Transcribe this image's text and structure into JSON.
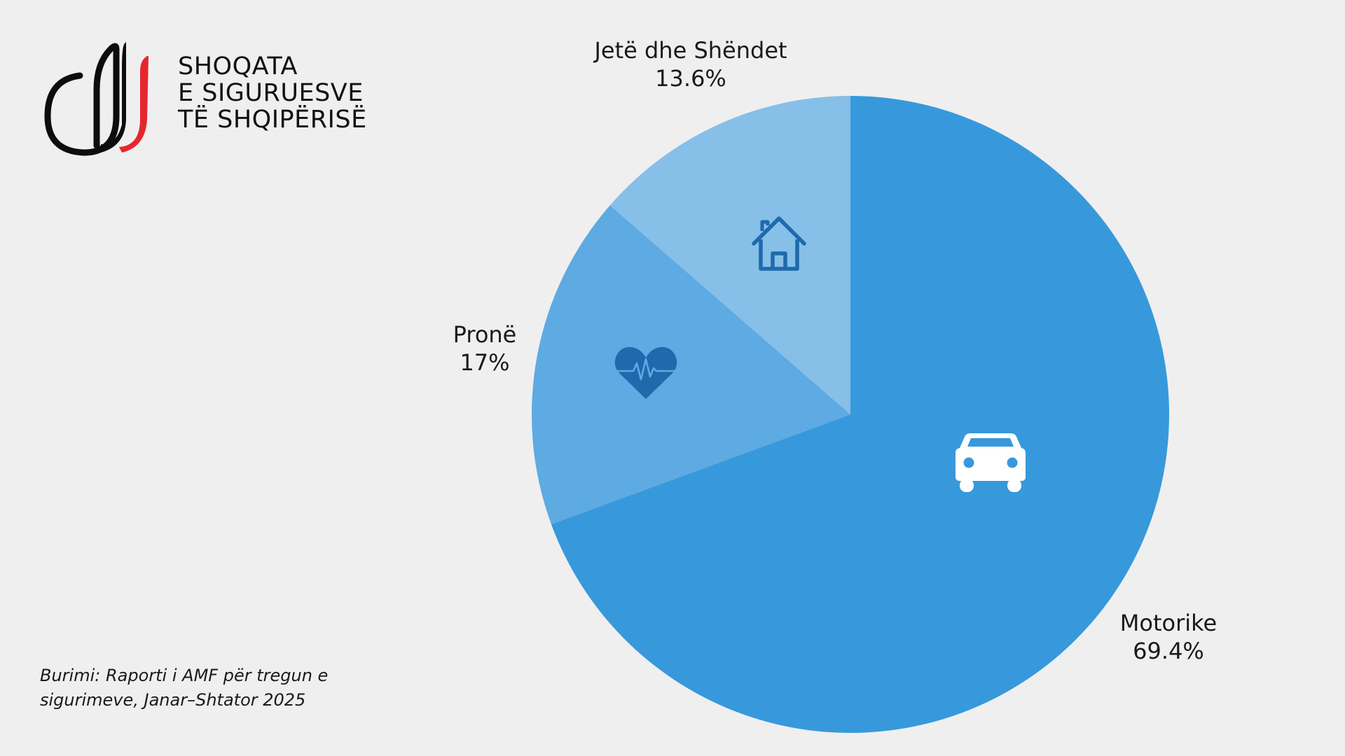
{
  "logo": {
    "lines": [
      "SHOQATA",
      "E SIGURUESVE",
      "TË SHQIPËRISË"
    ]
  },
  "source": {
    "lines": [
      "Burimi: Raporti i AMF për tregun e",
      "sigurimeve, Janar–Shtator 2025"
    ]
  },
  "chart_data": {
    "type": "pie",
    "title": "",
    "slices": [
      {
        "label": "Motorike",
        "value": 69.4,
        "value_label": "69.4%",
        "color": "#3799db",
        "icon": "car-icon"
      },
      {
        "label": "Pronë",
        "value": 17,
        "value_label": "17%",
        "color": "#5eaae2",
        "icon": "heart-pulse-icon"
      },
      {
        "label": "Jetë dhe Shëndet",
        "value": 13.6,
        "value_label": "13.6%",
        "color": "#86bfe8",
        "icon": "house-icon"
      }
    ],
    "start": "top",
    "direction": "clockwise",
    "legend": "none"
  },
  "colors": {
    "background": "#efefef",
    "logo_red": "#e6262e",
    "logo_black": "#0d0d0d",
    "icon_dark_blue": "#1f6aac",
    "icon_white": "#ffffff"
  }
}
